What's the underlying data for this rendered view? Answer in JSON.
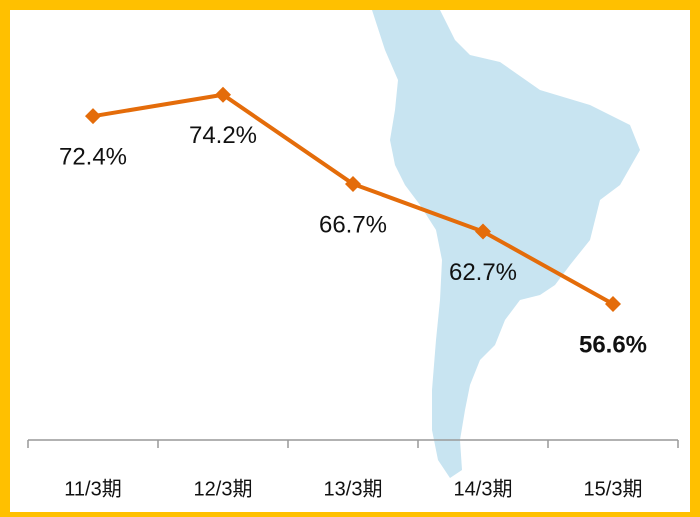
{
  "chart_data": {
    "type": "line",
    "categories": [
      "11/3期",
      "12/3期",
      "13/3期",
      "14/3期",
      "15/3期"
    ],
    "values": [
      72.4,
      74.2,
      66.7,
      62.7,
      56.6
    ],
    "value_labels": [
      "72.4%",
      "74.2%",
      "66.7%",
      "62.7%",
      "56.6%"
    ],
    "color": "#e46c0a",
    "ylim": [
      45,
      82
    ]
  }
}
